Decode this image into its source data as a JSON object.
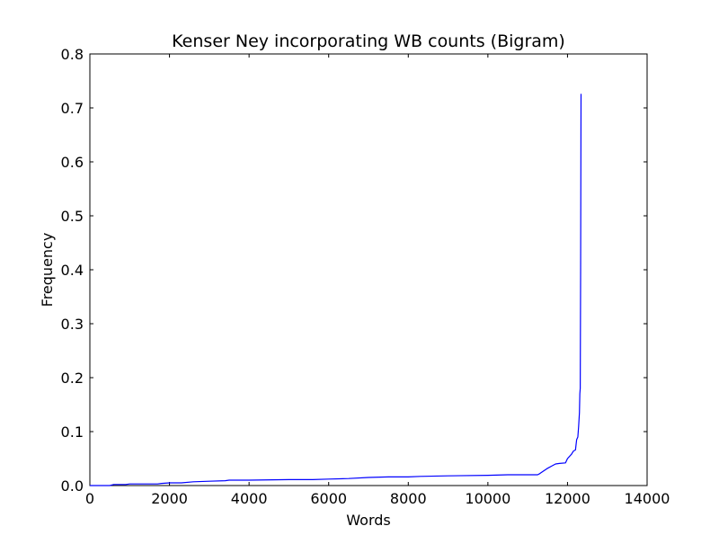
{
  "chart_data": {
    "type": "line",
    "title": "Kenser Ney incorporating WB counts (Bigram)",
    "xlabel": "Words",
    "ylabel": "Frequency",
    "xlim": [
      0,
      14000
    ],
    "ylim": [
      0,
      0.8
    ],
    "xticks": [
      0,
      2000,
      4000,
      6000,
      8000,
      10000,
      12000,
      14000
    ],
    "xtick_labels": [
      "0",
      "2000",
      "4000",
      "6000",
      "8000",
      "10000",
      "12000",
      "14000"
    ],
    "yticks": [
      0.0,
      0.1,
      0.2,
      0.3,
      0.4,
      0.5,
      0.6,
      0.7,
      0.8
    ],
    "ytick_labels": [
      "0.0",
      "0.1",
      "0.2",
      "0.3",
      "0.4",
      "0.5",
      "0.6",
      "0.7",
      "0.8"
    ],
    "grid": false,
    "line_color": "#0000ff",
    "series": [
      {
        "x": [
          0,
          500,
          600,
          900,
          1000,
          1700,
          1800,
          2000,
          2300,
          2600,
          3000,
          3400,
          3500,
          4000,
          5000,
          5600,
          6000,
          6500,
          7000,
          7500,
          8000,
          8300,
          9000,
          10000,
          10500,
          11250,
          11300,
          11400,
          11500,
          11600,
          11700,
          11800,
          11950,
          12000,
          12100,
          12150,
          12200,
          12230,
          12260,
          12280,
          12300,
          12310,
          12320,
          12330,
          12340
        ],
        "y": [
          0.0,
          0.0,
          0.002,
          0.002,
          0.003,
          0.003,
          0.004,
          0.005,
          0.005,
          0.007,
          0.008,
          0.009,
          0.01,
          0.01,
          0.011,
          0.011,
          0.012,
          0.013,
          0.015,
          0.016,
          0.016,
          0.017,
          0.018,
          0.019,
          0.02,
          0.02,
          0.022,
          0.027,
          0.032,
          0.036,
          0.04,
          0.041,
          0.042,
          0.05,
          0.058,
          0.064,
          0.066,
          0.085,
          0.09,
          0.11,
          0.135,
          0.17,
          0.18,
          0.4,
          0.726
        ]
      }
    ]
  }
}
